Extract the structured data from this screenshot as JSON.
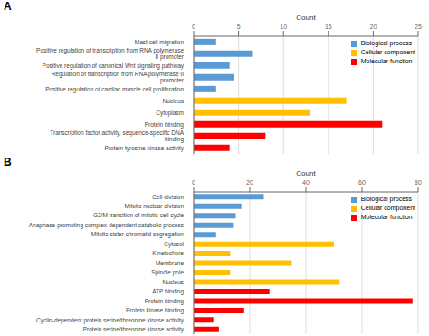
{
  "chart_data": [
    {
      "type": "bar",
      "orientation": "horizontal",
      "stacked": true,
      "title": "A",
      "x_label": "Count",
      "categories": [
        "Mast cell migration",
        "Positive regulation of transcription from RNA polymerase II promoter",
        "Positive regulation of canonical Wnt signaling pathway",
        "Regulation of transcription from RNA polymerase II promoter",
        "Positive regulation of cardiac muscle cell proliferation",
        "Nucleus",
        "Cytoplasm",
        "Protein binding",
        "Transcription factor activity, sequence-specific DNA binding",
        "Protein tyrosine kinase activity"
      ],
      "series": [
        {
          "name": "Biological process",
          "color": "#5B9BD5",
          "values": [
            2.5,
            6.5,
            4.0,
            4.5,
            2.5,
            null,
            null,
            null,
            null,
            null
          ]
        },
        {
          "name": "Cellular component",
          "color": "#FFC000",
          "values": [
            null,
            null,
            null,
            null,
            null,
            17.0,
            13.0,
            null,
            null,
            null
          ]
        },
        {
          "name": "Molecular function",
          "color": "#FF0000",
          "values": [
            null,
            null,
            null,
            null,
            null,
            null,
            null,
            21.0,
            8.0,
            4.0
          ]
        }
      ],
      "xlim": [
        0,
        25
      ],
      "xticks": [
        0,
        5,
        10,
        15,
        20,
        25
      ],
      "grid": true,
      "legend": "upper right"
    },
    {
      "type": "bar",
      "orientation": "horizontal",
      "stacked": true,
      "title": "B",
      "x_label": "Count",
      "categories": [
        "Cell division",
        "Mitotic nuclear division",
        "G2/M transition of mitotic cell cycle",
        "Anaphase-promoting complex-dependent catabolic process",
        "Mitotic sister chromatid segregation",
        "Cytosol",
        "Kinetochore",
        "Membrane",
        "Spindle pole",
        "Nucleus",
        "ATP binding",
        "Protein binding",
        "Protein kinase binding",
        "Cyclin-dependent protein serine/threonine kinase activity",
        "Protein serine/threonine kinase activity"
      ],
      "series": [
        {
          "name": "Biological process",
          "color": "#5B9BD5",
          "values": [
            25,
            17,
            15,
            14,
            8,
            null,
            null,
            null,
            null,
            null,
            null,
            null,
            null,
            null,
            null
          ]
        },
        {
          "name": "Cellular component",
          "color": "#FFC000",
          "values": [
            null,
            null,
            null,
            null,
            null,
            50,
            13,
            35,
            13,
            52,
            null,
            null,
            null,
            null,
            null
          ]
        },
        {
          "name": "Molecular function",
          "color": "#FF0000",
          "values": [
            null,
            null,
            null,
            null,
            null,
            null,
            null,
            null,
            null,
            null,
            27,
            78,
            18,
            7,
            9
          ]
        }
      ],
      "xlim": [
        0,
        80
      ],
      "xticks": [
        0,
        20,
        40,
        60,
        80
      ],
      "grid": true,
      "legend": "upper right"
    }
  ]
}
